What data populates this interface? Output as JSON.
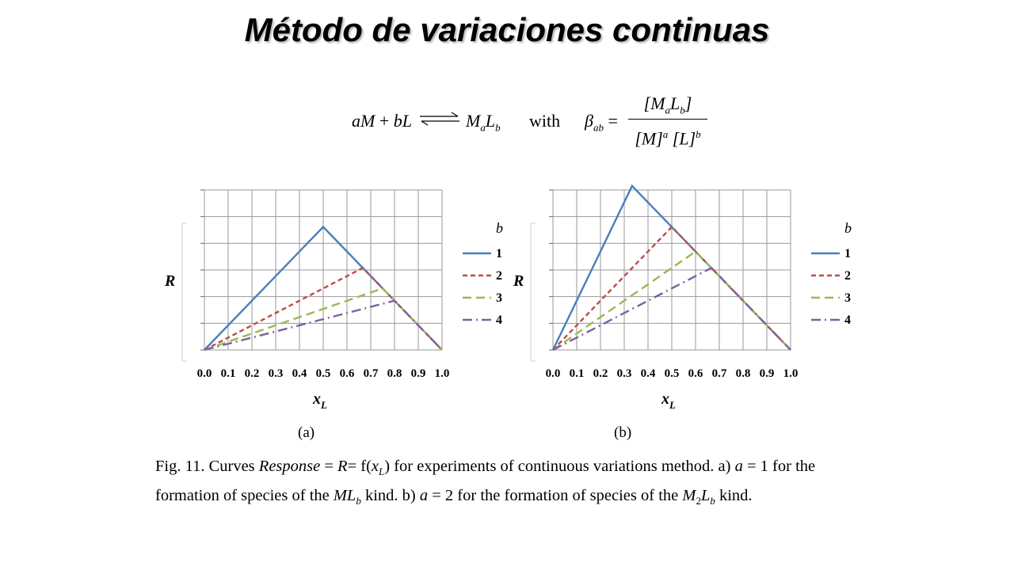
{
  "title": "Método de variaciones continuas",
  "equation": {
    "lhs_a": "a",
    "lhs_M": "M",
    "plus1": " + ",
    "lhs_b": "b",
    "lhs_L": "L",
    "prod_M": "M",
    "prod_a": "a",
    "prod_L": "L",
    "prod_b": "b",
    "with": "with",
    "beta": "β",
    "beta_sub": "ab",
    "equals": " =",
    "num": "[M",
    "num_a": "a",
    "num_L": "L",
    "num_b": "b",
    "num_close": "]",
    "den_M": "[M]",
    "den_a": "a",
    "den_L": "[L]",
    "den_b": "b"
  },
  "chart_data": [
    {
      "type": "line",
      "panel": "(a)",
      "xlabel": "x",
      "xlabel_sub": "L",
      "ylabel": "R",
      "xlim": [
        0,
        1
      ],
      "ylim": [
        0,
        1.3
      ],
      "x_ticks": [
        "0.0",
        "0.1",
        "0.2",
        "0.3",
        "0.4",
        "0.5",
        "0.6",
        "0.7",
        "0.8",
        "0.9",
        "1.0"
      ],
      "grid": true,
      "legend": {
        "title": "b",
        "position": "right"
      },
      "series": [
        {
          "name": "1",
          "color": "#4a7ebb",
          "dash": "solid",
          "points": [
            [
              0,
              0
            ],
            [
              0.5,
              1.0
            ],
            [
              1.0,
              0
            ]
          ]
        },
        {
          "name": "2",
          "color": "#be4b48",
          "dash": "dash",
          "points": [
            [
              0,
              0
            ],
            [
              0.667,
              0.667
            ],
            [
              1.0,
              0
            ]
          ]
        },
        {
          "name": "3",
          "color": "#98b954",
          "dash": "longdash",
          "points": [
            [
              0,
              0
            ],
            [
              0.75,
              0.5
            ],
            [
              1.0,
              0
            ]
          ]
        },
        {
          "name": "4",
          "color": "#7d60a0",
          "dash": "dashdot",
          "points": [
            [
              0,
              0
            ],
            [
              0.8,
              0.4
            ],
            [
              1.0,
              0
            ]
          ]
        }
      ]
    },
    {
      "type": "line",
      "panel": "(b)",
      "xlabel": "x",
      "xlabel_sub": "L",
      "ylabel": "R",
      "xlim": [
        0,
        1
      ],
      "ylim": [
        0,
        1.3
      ],
      "x_ticks": [
        "0.0",
        "0.1",
        "0.2",
        "0.3",
        "0.4",
        "0.5",
        "0.6",
        "0.7",
        "0.8",
        "0.9",
        "1.0"
      ],
      "grid": true,
      "legend": {
        "title": "b",
        "position": "right"
      },
      "series": [
        {
          "name": "1",
          "color": "#4a7ebb",
          "dash": "solid",
          "points": [
            [
              0,
              0
            ],
            [
              0.333,
              1.333
            ],
            [
              1.0,
              0
            ]
          ]
        },
        {
          "name": "2",
          "color": "#be4b48",
          "dash": "dash",
          "points": [
            [
              0,
              0
            ],
            [
              0.5,
              1.0
            ],
            [
              1.0,
              0
            ]
          ]
        },
        {
          "name": "3",
          "color": "#98b954",
          "dash": "longdash",
          "points": [
            [
              0,
              0
            ],
            [
              0.6,
              0.8
            ],
            [
              1.0,
              0
            ]
          ]
        },
        {
          "name": "4",
          "color": "#7d60a0",
          "dash": "dashdot",
          "points": [
            [
              0,
              0
            ],
            [
              0.667,
              0.667
            ],
            [
              1.0,
              0
            ]
          ]
        }
      ]
    }
  ],
  "caption": {
    "p1": "Fig. 11. Curves ",
    "response": "Response",
    "p2": " = ",
    "R": "R",
    "p3": "= f(",
    "x": "x",
    "xsub": "L",
    "p4": ") for experiments of continuous variations method. a) ",
    "a1": "a",
    "p5": " = 1 for the formation of species of the ",
    "ML": "ML",
    "b1": "b",
    "p6": " kind. b) ",
    "a2": "a",
    "p7": " = 2 for the formation of species of the ",
    "M2": "M",
    "two": "2",
    "L2": "L",
    "b2": "b",
    "p8": " kind."
  }
}
